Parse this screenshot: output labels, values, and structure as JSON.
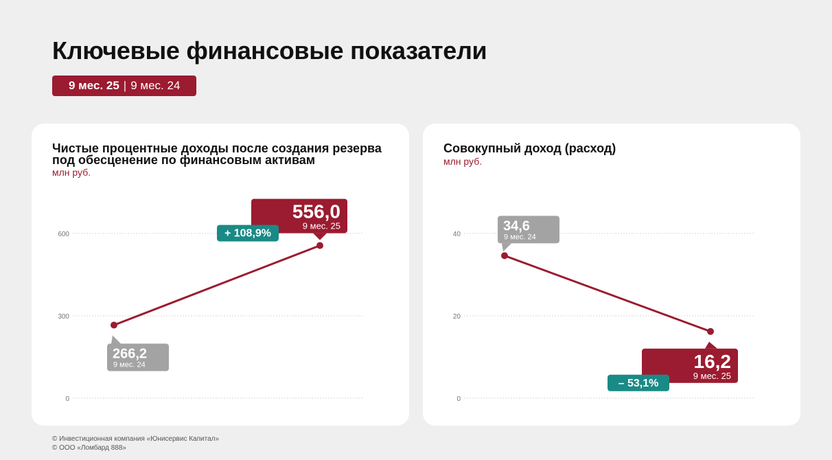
{
  "page": {
    "title": "Ключевые финансовые показатели",
    "period_current": "9 мес. 25",
    "period_separator": "|",
    "period_previous": "9 мес. 24"
  },
  "colors": {
    "accent": "#9b1b30",
    "previous_box": "#a3a3a3",
    "change_badge": "#1a8a86",
    "grid": "#d9d9d9"
  },
  "charts": [
    {
      "title": "Чистые процентные доходы после создания резерва под обесценение по финансовым активам",
      "unit": "млн руб."
    },
    {
      "title": "Совокупный доход (расход)",
      "unit": "млн руб."
    }
  ],
  "chart_data": [
    {
      "type": "line",
      "title": "Чистые процентные доходы после создания резерва под обесценение по финансовым активам",
      "ylabel": "млн руб.",
      "categories": [
        "9 мес. 24",
        "9 мес. 25"
      ],
      "values": [
        266.2,
        556.0
      ],
      "value_labels": [
        "266,2",
        "556,0"
      ],
      "ylim": [
        0,
        600
      ],
      "yticks": [
        0,
        300,
        600
      ],
      "ytick_labels": [
        "0",
        "300",
        "600"
      ],
      "change_label": "+ 108,9%",
      "grid": true
    },
    {
      "type": "line",
      "title": "Совокупный доход (расход)",
      "ylabel": "млн руб.",
      "categories": [
        "9 мес. 24",
        "9 мес. 25"
      ],
      "values": [
        34.6,
        16.2
      ],
      "value_labels": [
        "34,6",
        "16,2"
      ],
      "ylim": [
        0,
        40
      ],
      "yticks": [
        0,
        20,
        40
      ],
      "ytick_labels": [
        "0",
        "20",
        "40"
      ],
      "change_label": "– 53,1%",
      "grid": true
    }
  ],
  "footer": {
    "line1": "© Инвестиционная компания «Юнисервис Капитал»",
    "line2": "© ООО «Ломбард 888»"
  }
}
